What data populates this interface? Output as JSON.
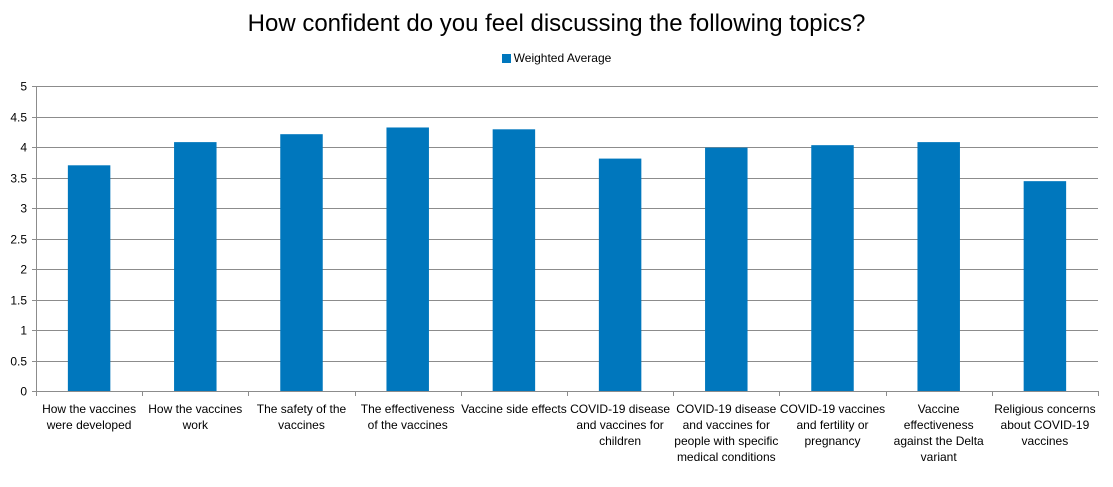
{
  "chart_data": {
    "type": "bar",
    "title": "How confident do you feel discussing the following topics?",
    "xlabel": "",
    "ylabel": "",
    "ylim": [
      0,
      5
    ],
    "yticks": [
      "0",
      "0.5",
      "1",
      "1.5",
      "2",
      "2.5",
      "3",
      "3.5",
      "4",
      "4.5",
      "5"
    ],
    "grid": true,
    "legend_position": "top-center",
    "categories": [
      "How the vaccines were developed",
      "How the vaccines work",
      "The safety of the vaccines",
      "The effectiveness of the vaccines",
      "Vaccine side effects",
      "COVID-19 disease and vaccines for children",
      "COVID-19 disease and vaccines for people with specific medical conditions",
      "COVID-19 vaccines and fertility or pregnancy",
      "Vaccine effectiveness against the Delta variant",
      "Religious concerns about COVID-19 vaccines"
    ],
    "series": [
      {
        "name": "Weighted Average",
        "color": "#0077bd",
        "values": [
          3.7,
          4.08,
          4.21,
          4.32,
          4.29,
          3.81,
          3.99,
          4.03,
          4.08,
          3.44
        ]
      }
    ]
  }
}
